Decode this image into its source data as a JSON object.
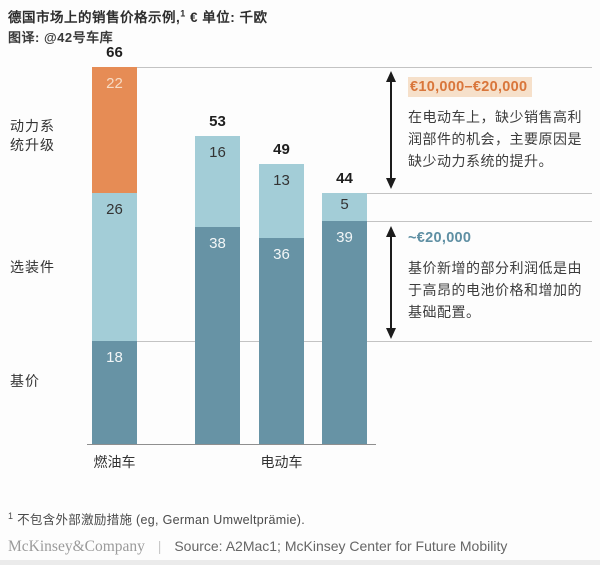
{
  "title": {
    "main": "德国市场上的销售价格示例,",
    "sup": "1",
    "unit": " € 单位: 千欧",
    "credit": "图译: @42号车库"
  },
  "chart_data": {
    "type": "bar",
    "stacked": true,
    "title": "德国市场上的销售价格示例 (€ 千欧)",
    "ylim": [
      0,
      66
    ],
    "grid": "reference lines at values 66, 44, 39, 18",
    "legend_position": "left row labels",
    "row_labels": {
      "powertrain": "动力系统升级",
      "options": "选装件",
      "base": "基价"
    },
    "segment_colors": {
      "基价": "#6793a5",
      "选装件": "#a3cdd7",
      "动力系统升级": "#e68c55"
    },
    "segment_label_colors": {
      "基价": "#f2f6f7",
      "选装件": "#333333",
      "动力系统升级": "#f7dcc5"
    },
    "bars": [
      {
        "category": "燃油车",
        "total": 66,
        "segments": [
          {
            "name": "基价",
            "value": 18
          },
          {
            "name": "选装件",
            "value": 26
          },
          {
            "name": "动力系统升级",
            "value": 22
          }
        ]
      },
      {
        "category": "电动车",
        "total": 53,
        "segments": [
          {
            "name": "基价",
            "value": 38
          },
          {
            "name": "选装件",
            "value": 16
          }
        ]
      },
      {
        "category": "电动车",
        "total": 49,
        "segments": [
          {
            "name": "基价",
            "value": 36
          },
          {
            "name": "选装件",
            "value": 13
          }
        ]
      },
      {
        "category": "电动车",
        "total": 44,
        "segments": [
          {
            "name": "基价",
            "value": 39
          },
          {
            "name": "选装件",
            "value": 5
          }
        ]
      }
    ],
    "x_axis_labels": [
      {
        "text": "燃油车",
        "center_bar": 0
      },
      {
        "text": "电动车",
        "center_bar": 2
      }
    ],
    "annotations": [
      {
        "range_label": "€10,000–€20,000",
        "color": "#d9763b",
        "text": "在电动车上，缺少销售高利润部件的机会，主要原因是缺少动力系统的提升。",
        "arrow_from_value": 66,
        "arrow_to_value": 44
      },
      {
        "range_label": "~€20,000",
        "color": "#5e8fa3",
        "text": "基价新增的部分利润低是由于高昂的电池价格和增加的基础配置。",
        "arrow_from_value": 39,
        "arrow_to_value": 18
      }
    ]
  },
  "footnote": {
    "marker": "1",
    "text": " 不包含外部激励措施 (eg, German Umweltprämie)."
  },
  "footer": {
    "brand": "McKinsey&Company",
    "divider": "|",
    "source": "Source: A2Mac1; McKinsey Center for Future Mobility"
  }
}
